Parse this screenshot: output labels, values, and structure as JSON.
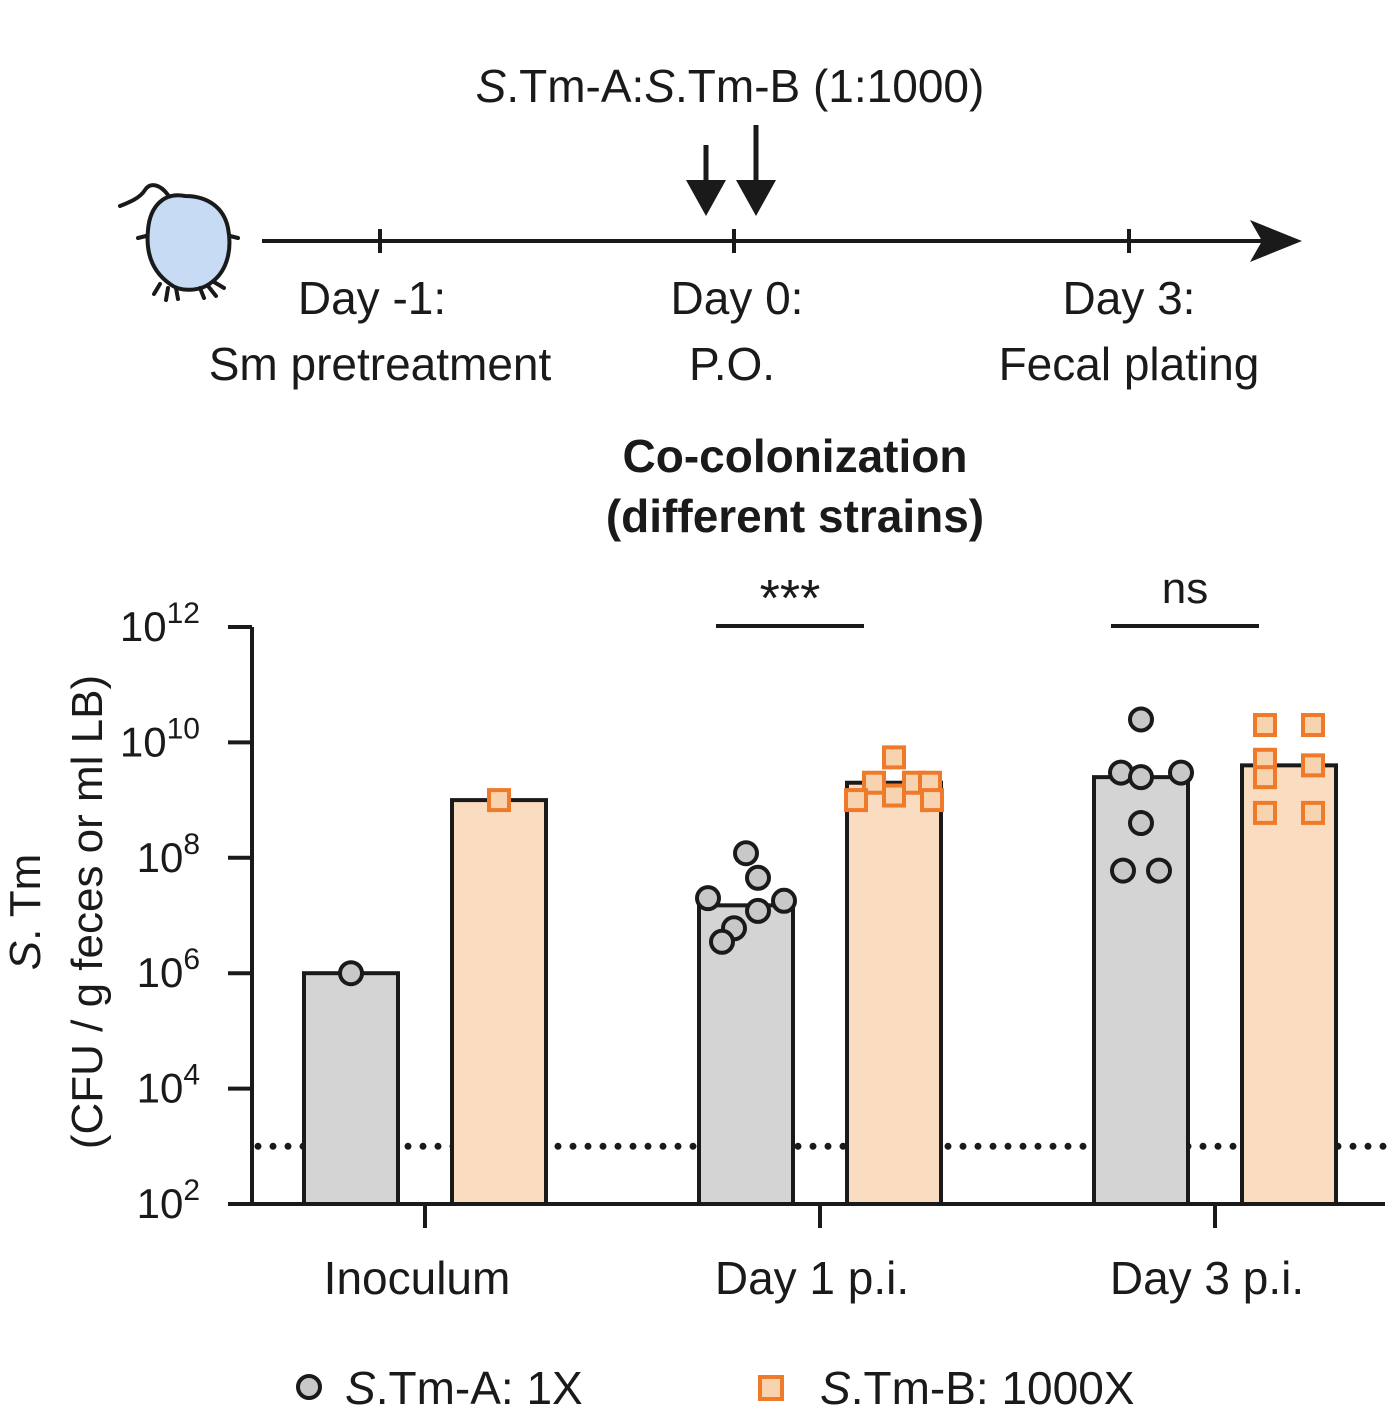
{
  "timeline": {
    "treatment_label_parts": [
      "S",
      ".Tm-A:",
      "S",
      ".Tm-B (1:1000)"
    ],
    "events": [
      {
        "day": "Day -1:",
        "desc": "Sm pretreatment"
      },
      {
        "day": "Day 0:",
        "desc": "P.O."
      },
      {
        "day": "Day 3:",
        "desc": "Fecal plating"
      }
    ]
  },
  "chart_title_lines": [
    "Co-colonization",
    "(different strains)"
  ],
  "ylabel_lines": [
    "S. Tm",
    "(CFU / g feces or ml LB)"
  ],
  "ytick_exponents": [
    "12",
    "10",
    "8",
    "6",
    "4",
    "2"
  ],
  "ytick_base": "10",
  "significance": [
    {
      "group": "Day 1 p.i.",
      "label": "***"
    },
    {
      "group": "Day 3 p.i.",
      "label": "ns"
    }
  ],
  "legend": [
    {
      "italic": "S",
      "rest": ".Tm-A: 1X",
      "marker": "circle"
    },
    {
      "italic": "S",
      "rest": ".Tm-B: 1000X",
      "marker": "square"
    }
  ],
  "colors": {
    "strain_a_fill": "#d4d4d4",
    "strain_a_point": "#c8c8c8",
    "strain_b_fill": "#fadcc0",
    "strain_b_edge": "#ee7a2a",
    "strain_b_point_fill": "#f8d3b0",
    "ink": "#1a1a1a"
  },
  "chart_data": {
    "type": "bar",
    "yscale": "log10",
    "ylim": [
      100,
      1000000000000
    ],
    "detection_limit": 1000,
    "categories": [
      "Inoculum",
      "Day 1 p.i.",
      "Day 3 p.i."
    ],
    "series": [
      {
        "name": "S.Tm-A: 1X",
        "values": [
          1000000,
          15000000,
          2500000000
        ],
        "points": [
          [
            1000000
          ],
          [
            120000000,
            45000000,
            20000000,
            18000000,
            12000000,
            6000000,
            3500000
          ],
          [
            25000000000,
            3000000000,
            2500000000,
            3000000000,
            400000000,
            60000000,
            60000000
          ]
        ]
      },
      {
        "name": "S.Tm-B: 1000X",
        "values": [
          1000000000,
          2000000000,
          4000000000
        ],
        "points": [
          [
            1000000000
          ],
          [
            5500000000,
            2000000000,
            2000000000,
            2000000000,
            1200000000,
            1000000000,
            1000000000
          ],
          [
            20000000000,
            20000000000,
            5000000000,
            4000000000,
            2500000000,
            600000000,
            600000000
          ]
        ]
      }
    ]
  }
}
